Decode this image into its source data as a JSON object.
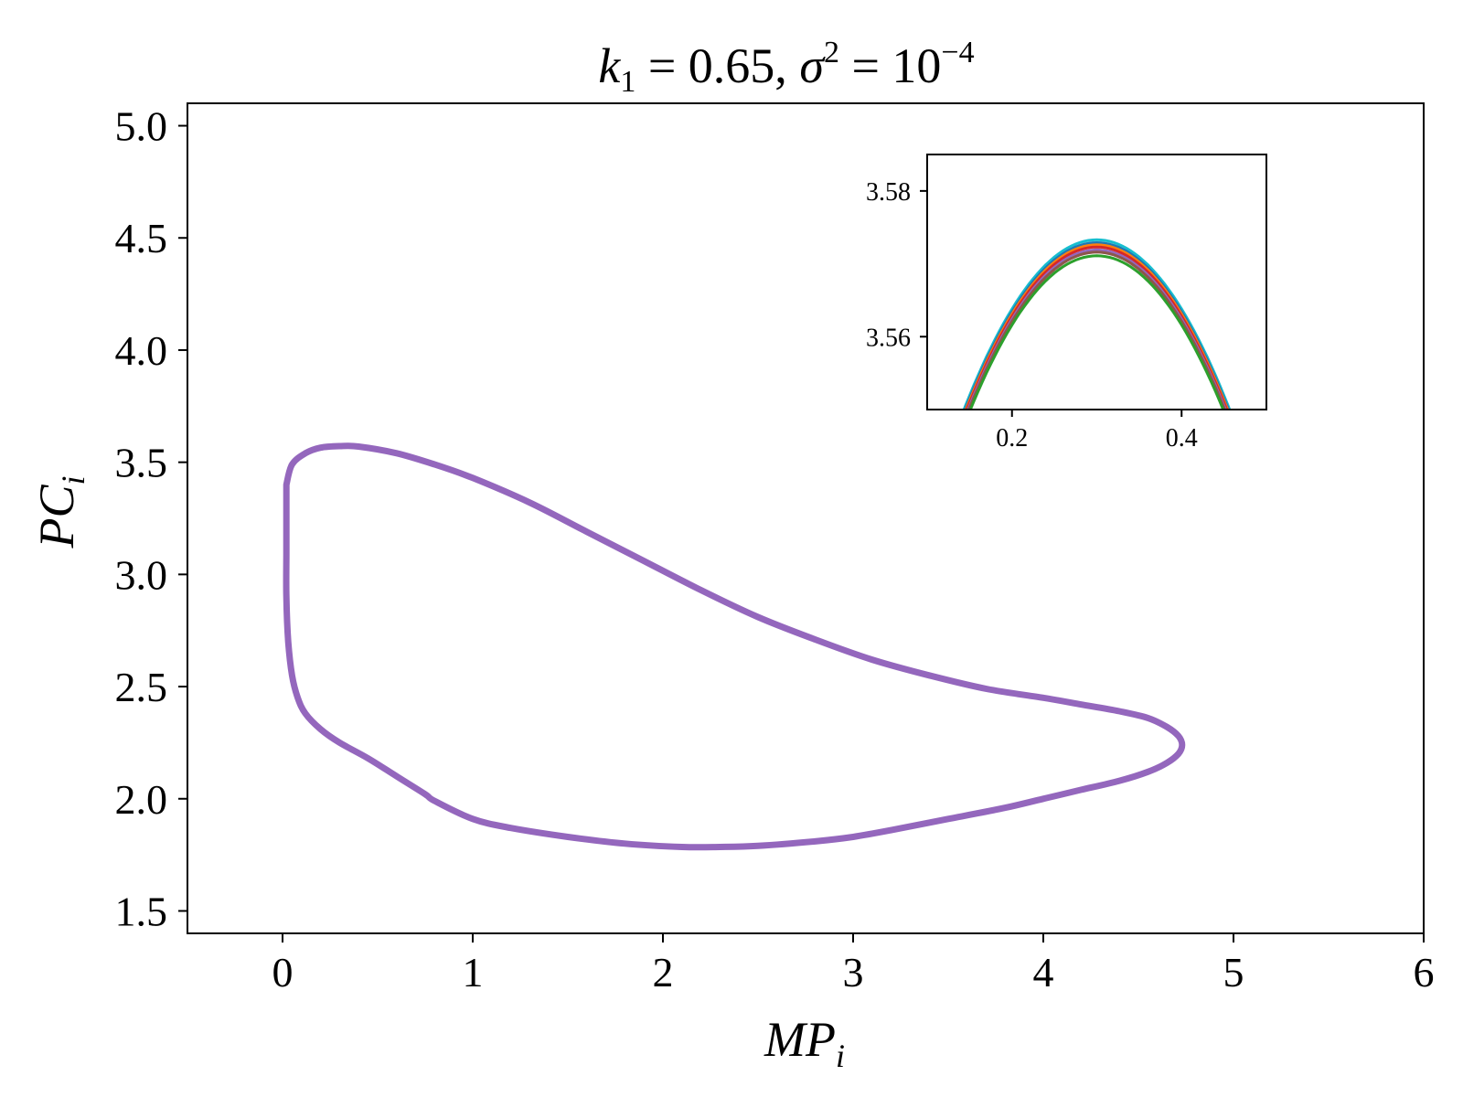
{
  "chart_data": [
    {
      "type": "line",
      "title": "k₁ = 0.65, σ² = 10⁻⁴",
      "title_parts": {
        "k": "k",
        "k_sub": "1",
        "k_val": " = 0.65, ",
        "sigma": "σ",
        "sigma_sup": "2",
        "sigma_val": " = 10",
        "exp": "−4"
      },
      "xlabel": "MP",
      "xlabel_sub": "i",
      "ylabel": "PC",
      "ylabel_sub": "i",
      "xlim": [
        -0.5,
        6
      ],
      "ylim": [
        1.4,
        5.1
      ],
      "xticks": [
        "0",
        "1",
        "2",
        "3",
        "4",
        "5",
        "6"
      ],
      "xtick_values": [
        0,
        1,
        2,
        3,
        4,
        5,
        6
      ],
      "yticks": [
        "1.5",
        "2.0",
        "2.5",
        "3.0",
        "3.5",
        "4.0",
        "4.5",
        "5.0"
      ],
      "ytick_values": [
        1.5,
        2.0,
        2.5,
        3.0,
        3.5,
        4.0,
        4.5,
        5.0
      ],
      "grid": false,
      "series": [
        {
          "color": "#9467bd",
          "closed": true,
          "x": [
            0.02,
            0.05,
            0.12,
            0.2,
            0.3,
            0.4,
            0.6,
            0.8,
            1.0,
            1.3,
            1.6,
            1.9,
            2.2,
            2.5,
            2.8,
            3.1,
            3.4,
            3.7,
            4.0,
            4.2,
            4.4,
            4.55,
            4.65,
            4.71,
            4.73,
            4.71,
            4.65,
            4.55,
            4.4,
            4.2,
            4.0,
            3.8,
            3.5,
            3.2,
            3.0,
            2.8,
            2.5,
            2.3,
            2.1,
            1.8,
            1.5,
            1.2,
            1.0,
            0.8,
            0.75,
            0.6,
            0.45,
            0.3,
            0.2,
            0.12,
            0.08,
            0.05,
            0.03,
            0.02,
            0.02,
            0.02,
            0.02
          ],
          "y": [
            3.4,
            3.49,
            3.54,
            3.565,
            3.572,
            3.57,
            3.54,
            3.49,
            3.43,
            3.32,
            3.19,
            3.06,
            2.93,
            2.81,
            2.71,
            2.62,
            2.55,
            2.49,
            2.45,
            2.42,
            2.39,
            2.36,
            2.32,
            2.28,
            2.24,
            2.2,
            2.16,
            2.12,
            2.08,
            2.04,
            2.0,
            1.96,
            1.91,
            1.86,
            1.83,
            1.81,
            1.79,
            1.785,
            1.785,
            1.8,
            1.83,
            1.87,
            1.91,
            1.99,
            2.02,
            2.1,
            2.18,
            2.25,
            2.31,
            2.38,
            2.45,
            2.55,
            2.7,
            2.9,
            3.1,
            3.3,
            3.4
          ]
        }
      ]
    },
    {
      "type": "line",
      "title": "",
      "inset": true,
      "xlim": [
        0.1,
        0.5
      ],
      "ylim": [
        3.55,
        3.585
      ],
      "xticks": [
        "0.2",
        "0.4"
      ],
      "xtick_values": [
        0.2,
        0.4
      ],
      "yticks": [
        "3.56",
        "3.58"
      ],
      "ytick_values": [
        3.56,
        3.58
      ],
      "series": [
        {
          "color": "#17becf",
          "peak_x": 0.3,
          "peak_y": 3.5733,
          "curv": 0.95
        },
        {
          "color": "#1f77b4",
          "peak_x": 0.3,
          "peak_y": 3.5729,
          "curv": 0.95
        },
        {
          "color": "#ff7f0e",
          "peak_x": 0.3,
          "peak_y": 3.5726,
          "curv": 0.95
        },
        {
          "color": "#d62728",
          "peak_x": 0.3,
          "peak_y": 3.5723,
          "curv": 0.95
        },
        {
          "color": "#9467bd",
          "peak_x": 0.3,
          "peak_y": 3.5719,
          "curv": 0.95
        },
        {
          "color": "#8c564b",
          "peak_x": 0.3,
          "peak_y": 3.5716,
          "curv": 0.95
        },
        {
          "color": "#2ca02c",
          "peak_x": 0.3,
          "peak_y": 3.5711,
          "curv": 0.95
        }
      ]
    }
  ]
}
